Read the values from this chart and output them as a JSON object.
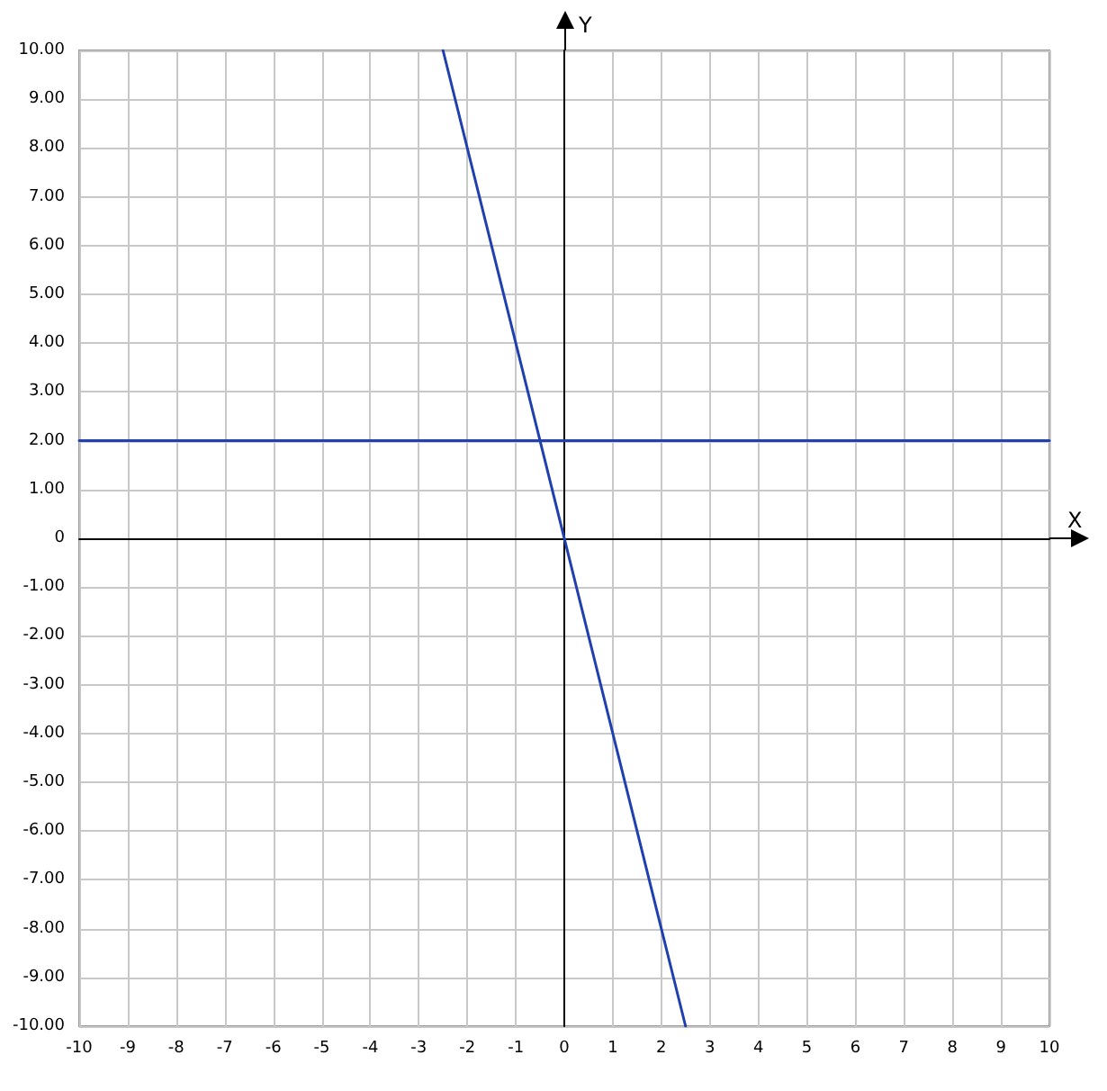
{
  "chart_data": {
    "type": "line",
    "xlabel": "X",
    "ylabel": "Y",
    "series": [
      {
        "color": "#2040b0",
        "x": [
          -2.5,
          2.5
        ],
        "values": [
          10,
          -10
        ]
      },
      {
        "color": "#2040b0",
        "x": [
          -10,
          10
        ],
        "values": [
          2,
          2
        ]
      }
    ],
    "xlim": [
      -10,
      10
    ],
    "ylim": [
      -10,
      10
    ],
    "xticks": [
      -10,
      -9,
      -8,
      -7,
      -6,
      -5,
      -4,
      -3,
      -2,
      -1,
      0,
      1,
      2,
      3,
      4,
      5,
      6,
      7,
      8,
      9,
      10
    ],
    "yticks": [
      {
        "value": -10,
        "label": "-10.00"
      },
      {
        "value": -9,
        "label": "-9.00"
      },
      {
        "value": -8,
        "label": "-8.00"
      },
      {
        "value": -7,
        "label": "-7.00"
      },
      {
        "value": -6,
        "label": "-6.00"
      },
      {
        "value": -5,
        "label": "-5.00"
      },
      {
        "value": -4,
        "label": "-4.00"
      },
      {
        "value": -3,
        "label": "-3.00"
      },
      {
        "value": -2,
        "label": "-2.00"
      },
      {
        "value": -1,
        "label": "-1.00"
      },
      0,
      {
        "value": 1,
        "label": "1.00"
      },
      {
        "value": 2,
        "label": "2.00"
      },
      {
        "value": 3,
        "label": "3.00"
      },
      {
        "value": 4,
        "label": "4.00"
      },
      {
        "value": 5,
        "label": "5.00"
      },
      {
        "value": 6,
        "label": "6.00"
      },
      {
        "value": 7,
        "label": "7.00"
      },
      {
        "value": 8,
        "label": "8.00"
      },
      {
        "value": 9,
        "label": "9.00"
      },
      {
        "value": 10,
        "label": "10.00"
      }
    ],
    "grid": true,
    "marker": "none",
    "line_style": "solid"
  }
}
